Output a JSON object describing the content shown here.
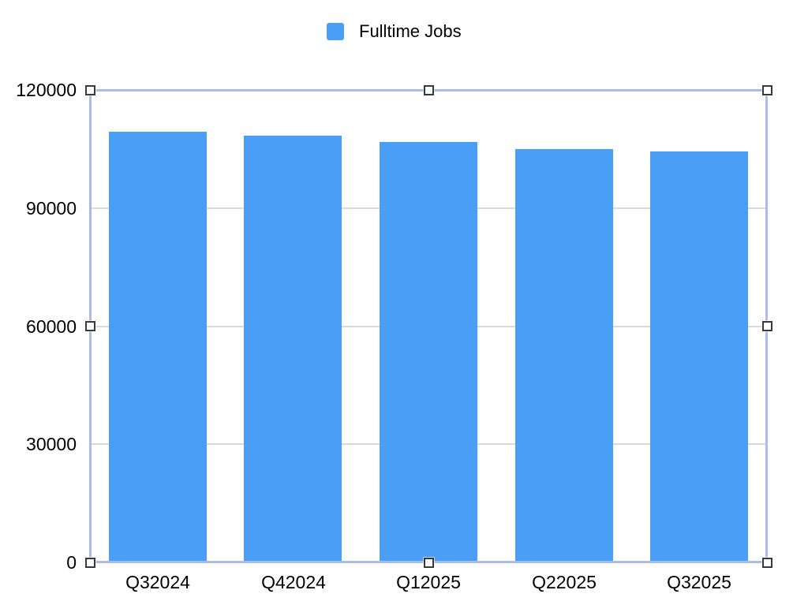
{
  "colors": {
    "bar": "#4A9EF5",
    "gridline": "#D9D9D9",
    "axis_line": "#3C4CA0",
    "selection_border": "#A9BCF0",
    "handle_fill": "#FFFFFF",
    "handle_border": "#3A3A3A",
    "text": "#000000",
    "background": "#FFFFFF"
  },
  "legend": {
    "items": [
      {
        "label": "Fulltime Jobs",
        "color": "#4A9EF5"
      }
    ]
  },
  "chart_data": {
    "type": "bar",
    "categories": [
      "Q32024",
      "Q42024",
      "Q12025",
      "Q22025",
      "Q32025"
    ],
    "series": [
      {
        "name": "Fulltime Jobs",
        "values": [
          109300,
          108400,
          106800,
          104900,
          104300
        ]
      }
    ],
    "title": "",
    "xlabel": "",
    "ylabel": "",
    "ylim": [
      0,
      120000
    ],
    "yticks": [
      0,
      30000,
      60000,
      90000,
      120000
    ],
    "ytick_labels": [
      "0",
      "30000",
      "60000",
      "90000",
      "120000"
    ],
    "grid": true,
    "legend_position": "top"
  },
  "selection": {
    "selected": true,
    "handles": [
      "top-left",
      "top-center",
      "top-right",
      "mid-left",
      "mid-right",
      "bottom-left",
      "bottom-center",
      "bottom-right"
    ]
  }
}
